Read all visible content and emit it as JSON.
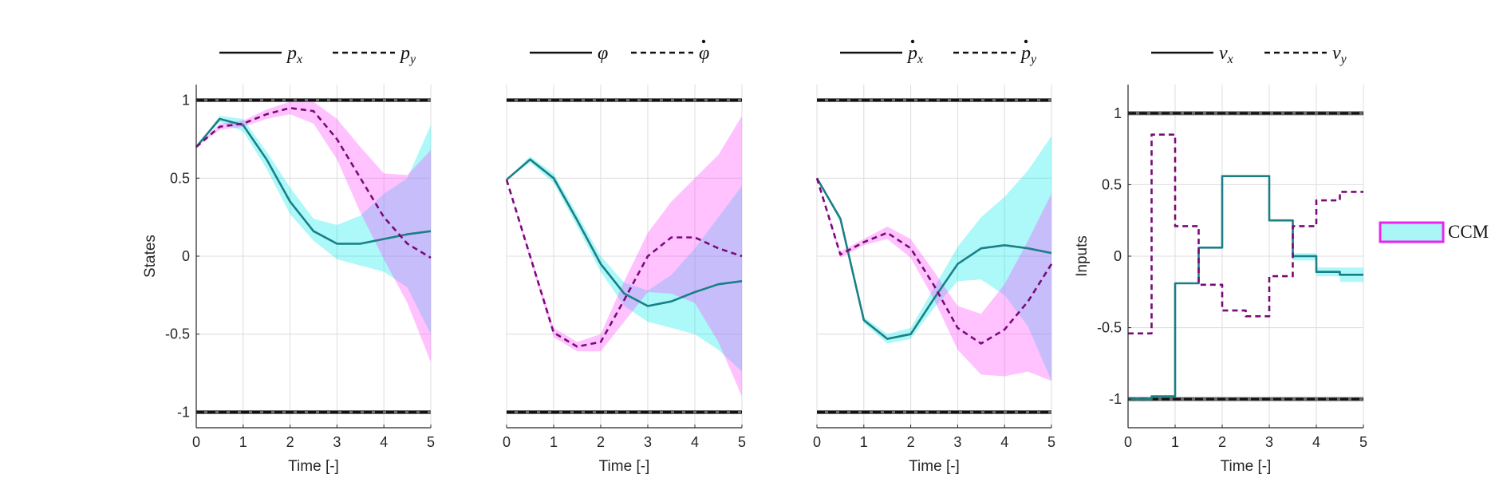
{
  "chart_data": [
    {
      "type": "line",
      "panel": 1,
      "ylabel": "States",
      "xlabel": "Time [-]",
      "xlim": [
        0,
        5
      ],
      "ylim": [
        -1.1,
        1.1
      ],
      "xticks": [
        "0",
        "1",
        "2",
        "3",
        "4",
        "5"
      ],
      "yticks": [
        "-1",
        "-0.5",
        "0",
        "0.5",
        "1"
      ],
      "ytick_values": [
        -1,
        -0.5,
        0,
        0.5,
        1
      ],
      "grid": true,
      "legend": {
        "placement": "top",
        "entries": [
          {
            "label": "p",
            "sub": "x",
            "dot": false,
            "style": "solid"
          },
          {
            "label": "p",
            "sub": "y",
            "dot": false,
            "style": "dashed"
          }
        ]
      },
      "bounds": [
        1,
        -1
      ],
      "series": [
        {
          "style": "solid",
          "color": "#1a7f86",
          "x": [
            0,
            0.5,
            1,
            1.5,
            2,
            2.5,
            3,
            3.5,
            4,
            4.5,
            5
          ],
          "y": [
            0.7,
            0.88,
            0.84,
            0.62,
            0.35,
            0.16,
            0.08,
            0.08,
            0.11,
            0.14,
            0.16
          ],
          "band_color": "#00e8e8",
          "band_lower": [
            0.7,
            0.86,
            0.8,
            0.56,
            0.27,
            0.1,
            -0.02,
            -0.06,
            -0.1,
            -0.2,
            -0.5
          ],
          "band_upper": [
            0.7,
            0.9,
            0.88,
            0.67,
            0.44,
            0.24,
            0.2,
            0.26,
            0.4,
            0.5,
            0.84
          ]
        },
        {
          "style": "dashed",
          "color": "#7a0a7a",
          "x": [
            0,
            0.5,
            1,
            1.5,
            2,
            2.5,
            3,
            3.5,
            4,
            4.5,
            5
          ],
          "y": [
            0.7,
            0.83,
            0.85,
            0.91,
            0.95,
            0.93,
            0.75,
            0.5,
            0.25,
            0.08,
            -0.01
          ],
          "band_color": "#ff40ff",
          "band_lower": [
            0.7,
            0.81,
            0.83,
            0.88,
            0.91,
            0.85,
            0.62,
            0.28,
            -0.02,
            -0.3,
            -0.68
          ],
          "band_upper": [
            0.7,
            0.85,
            0.87,
            0.94,
            0.99,
            0.99,
            0.88,
            0.7,
            0.53,
            0.52,
            0.68
          ]
        }
      ]
    },
    {
      "type": "line",
      "panel": 2,
      "ylabel": "",
      "xlabel": "Time [-]",
      "xlim": [
        0,
        5
      ],
      "ylim": [
        -1.1,
        1.1
      ],
      "xticks": [
        "0",
        "1",
        "2",
        "3",
        "4",
        "5"
      ],
      "yticks": [],
      "ytick_values": [
        -1,
        -0.5,
        0,
        0.5,
        1
      ],
      "grid": true,
      "legend": {
        "placement": "top",
        "entries": [
          {
            "label": "φ",
            "sub": "",
            "dot": false,
            "style": "solid"
          },
          {
            "label": "φ",
            "sub": "",
            "dot": true,
            "style": "dashed"
          }
        ]
      },
      "bounds": [
        1,
        -1
      ],
      "series": [
        {
          "style": "solid",
          "color": "#1a7f86",
          "x": [
            0,
            0.5,
            1,
            1.5,
            2,
            2.5,
            3,
            3.5,
            4,
            4.5,
            5
          ],
          "y": [
            0.49,
            0.62,
            0.5,
            0.23,
            -0.05,
            -0.24,
            -0.32,
            -0.29,
            -0.23,
            -0.18,
            -0.16
          ],
          "band_color": "#00e8e8",
          "band_lower": [
            0.49,
            0.6,
            0.47,
            0.19,
            -0.1,
            -0.32,
            -0.42,
            -0.46,
            -0.5,
            -0.6,
            -0.74
          ],
          "band_upper": [
            0.49,
            0.64,
            0.53,
            0.27,
            0.0,
            -0.17,
            -0.22,
            -0.12,
            0.05,
            0.25,
            0.45
          ]
        },
        {
          "style": "dashed",
          "color": "#7a0a7a",
          "x": [
            0,
            0.5,
            1,
            1.5,
            2,
            2.5,
            3,
            3.5,
            4,
            4.5,
            5
          ],
          "y": [
            0.49,
            0.0,
            -0.49,
            -0.58,
            -0.55,
            -0.28,
            0.0,
            0.12,
            0.12,
            0.05,
            0.0
          ],
          "band_color": "#ff40ff",
          "band_lower": [
            0.49,
            -0.02,
            -0.52,
            -0.61,
            -0.61,
            -0.42,
            -0.23,
            -0.24,
            -0.3,
            -0.55,
            -0.9
          ],
          "band_upper": [
            0.49,
            0.02,
            -0.46,
            -0.55,
            -0.5,
            -0.16,
            0.15,
            0.35,
            0.5,
            0.65,
            0.9
          ]
        }
      ]
    },
    {
      "type": "line",
      "panel": 3,
      "ylabel": "",
      "xlabel": "Time [-]",
      "xlim": [
        0,
        5
      ],
      "ylim": [
        -1.1,
        1.1
      ],
      "xticks": [
        "0",
        "1",
        "2",
        "3",
        "4",
        "5"
      ],
      "yticks": [],
      "ytick_values": [
        -1,
        -0.5,
        0,
        0.5,
        1
      ],
      "grid": true,
      "legend": {
        "placement": "top",
        "entries": [
          {
            "label": "p",
            "sub": "x",
            "dot": true,
            "style": "solid"
          },
          {
            "label": "p",
            "sub": "y",
            "dot": true,
            "style": "dashed"
          }
        ]
      },
      "bounds": [
        1,
        -1
      ],
      "series": [
        {
          "style": "solid",
          "color": "#1a7f86",
          "x": [
            0,
            0.5,
            1,
            1.5,
            2,
            2.5,
            3,
            3.5,
            4,
            4.5,
            5
          ],
          "y": [
            0.5,
            0.24,
            -0.41,
            -0.53,
            -0.5,
            -0.27,
            -0.05,
            0.05,
            0.07,
            0.05,
            0.02
          ],
          "band_color": "#00e8e8",
          "band_lower": [
            0.5,
            0.22,
            -0.43,
            -0.56,
            -0.53,
            -0.33,
            -0.16,
            -0.15,
            -0.25,
            -0.45,
            -0.8
          ],
          "band_upper": [
            0.5,
            0.26,
            -0.39,
            -0.5,
            -0.46,
            -0.2,
            0.06,
            0.25,
            0.38,
            0.55,
            0.77
          ]
        },
        {
          "style": "dashed",
          "color": "#7a0a7a",
          "x": [
            0,
            0.5,
            1,
            1.5,
            2,
            2.5,
            3,
            3.5,
            4,
            4.5,
            5
          ],
          "y": [
            0.5,
            0.01,
            0.09,
            0.15,
            0.05,
            -0.19,
            -0.46,
            -0.56,
            -0.47,
            -0.29,
            -0.05
          ],
          "band_color": "#ff40ff",
          "band_lower": [
            0.5,
            -0.01,
            0.07,
            0.11,
            -0.01,
            -0.28,
            -0.6,
            -0.76,
            -0.77,
            -0.74,
            -0.8
          ],
          "band_upper": [
            0.5,
            0.03,
            0.11,
            0.19,
            0.11,
            -0.1,
            -0.32,
            -0.37,
            -0.18,
            0.1,
            0.4
          ]
        }
      ]
    },
    {
      "type": "line",
      "panel": 4,
      "ylabel": "Inputs",
      "xlabel": "Time [-]",
      "xlim": [
        0,
        5
      ],
      "ylim": [
        -1.2,
        1.2
      ],
      "xticks": [
        "0",
        "1",
        "2",
        "3",
        "4",
        "5"
      ],
      "yticks": [
        "-1",
        "-0.5",
        "0",
        "0.5",
        "1"
      ],
      "ytick_values": [
        -1,
        -0.5,
        0,
        0.5,
        1
      ],
      "grid": true,
      "legend": {
        "placement": "top",
        "entries": [
          {
            "label": "v",
            "sub": "x",
            "dot": false,
            "style": "solid"
          },
          {
            "label": "v",
            "sub": "y",
            "dot": false,
            "style": "dashed"
          }
        ]
      },
      "bounds": [
        1,
        -1
      ],
      "step": true,
      "series": [
        {
          "style": "solid",
          "color": "#1a7f86",
          "x": [
            0,
            0.5,
            1,
            1.5,
            2,
            2.5,
            3,
            3.5,
            4,
            4.5,
            5
          ],
          "y": [
            -1.0,
            -0.98,
            -0.19,
            0.06,
            0.56,
            0.56,
            0.25,
            0.0,
            -0.11,
            -0.13,
            -0.13
          ],
          "band_color": "#00e8e8",
          "band_lower": [
            -1.0,
            -0.98,
            -0.19,
            0.06,
            0.56,
            0.56,
            0.25,
            -0.03,
            -0.14,
            -0.18,
            -0.18
          ],
          "band_upper": [
            -1.0,
            -0.98,
            -0.19,
            0.06,
            0.56,
            0.56,
            0.25,
            0.02,
            -0.08,
            -0.08,
            -0.08
          ]
        },
        {
          "style": "dashed",
          "color": "#7a0a7a",
          "x": [
            0,
            0.5,
            1,
            1.5,
            2,
            2.5,
            3,
            3.5,
            4,
            4.5,
            5
          ],
          "y": [
            -0.54,
            0.85,
            0.21,
            -0.2,
            -0.38,
            -0.42,
            -0.14,
            0.21,
            0.39,
            0.45,
            0.45
          ],
          "band_color": "#ff40ff",
          "band_lower": [
            -0.54,
            0.85,
            0.21,
            -0.2,
            -0.38,
            -0.42,
            -0.14,
            0.21,
            0.39,
            0.45,
            0.45
          ],
          "band_upper": [
            -0.54,
            0.85,
            0.21,
            -0.2,
            -0.38,
            -0.42,
            -0.14,
            0.21,
            0.39,
            0.45,
            0.45
          ]
        }
      ]
    }
  ],
  "figure_legend": {
    "label": "CCM",
    "fill_color": "#aaf6f6",
    "edge_color": "#ee22ee"
  }
}
